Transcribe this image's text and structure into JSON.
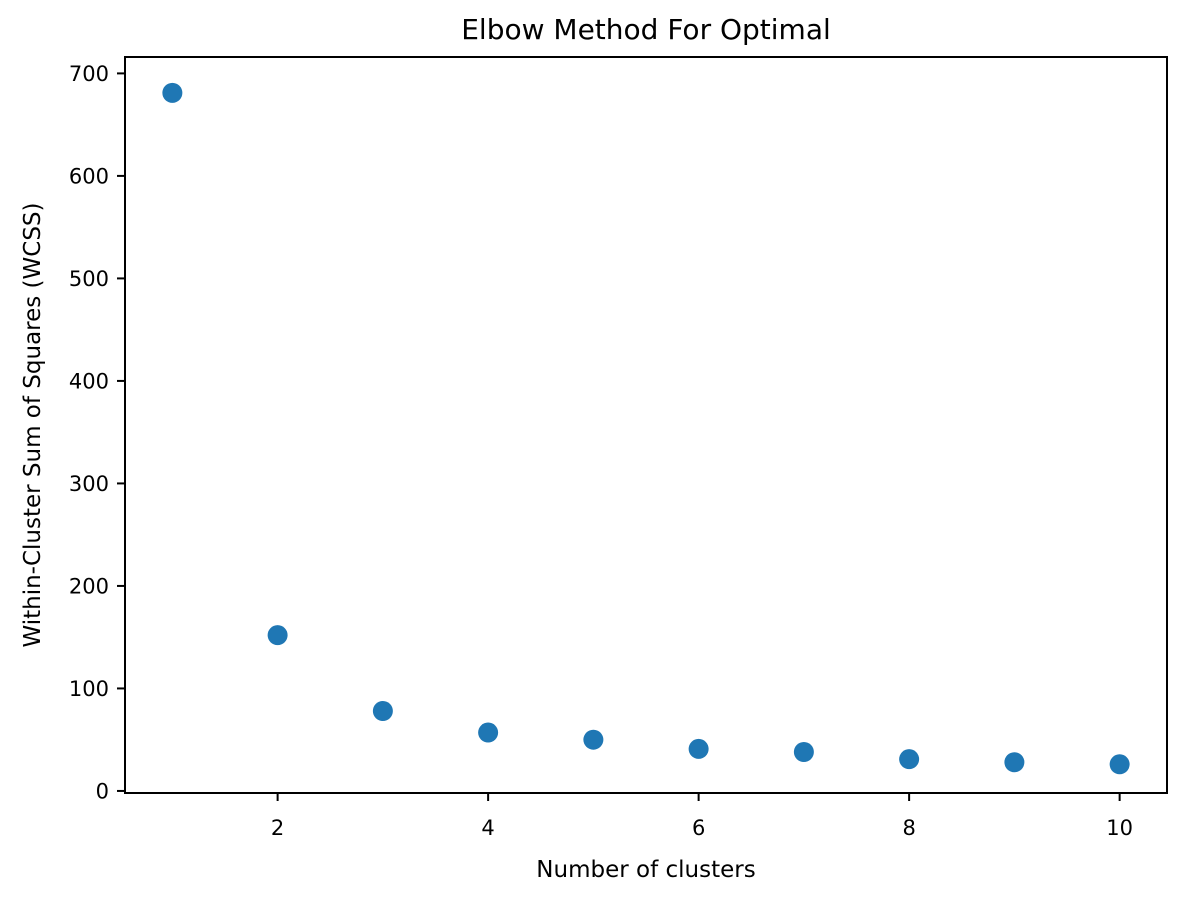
{
  "chart_data": {
    "type": "scatter",
    "title": "Elbow Method For Optimal",
    "xlabel": "Number of clusters",
    "ylabel": "Within-Cluster Sum of Squares (WCSS)",
    "x": [
      1,
      2,
      3,
      4,
      5,
      6,
      7,
      8,
      9,
      10
    ],
    "y": [
      681,
      152,
      78,
      57,
      50,
      41,
      38,
      31,
      28,
      26
    ],
    "xticks": [
      2,
      4,
      6,
      8,
      10
    ],
    "yticks": [
      0,
      100,
      200,
      300,
      400,
      500,
      600,
      700
    ],
    "xtick_labels": [
      "2",
      "4",
      "6",
      "8",
      "10"
    ],
    "ytick_labels": [
      "0",
      "100",
      "200",
      "300",
      "400",
      "500",
      "600",
      "700"
    ],
    "xlim": [
      0.55,
      10.45
    ],
    "ylim": [
      -2,
      716
    ],
    "grid": false,
    "legend": null,
    "marker_color": "#1f77b4",
    "marker_radius": 10,
    "axis_color": "#000000",
    "background_color": "#ffffff"
  }
}
